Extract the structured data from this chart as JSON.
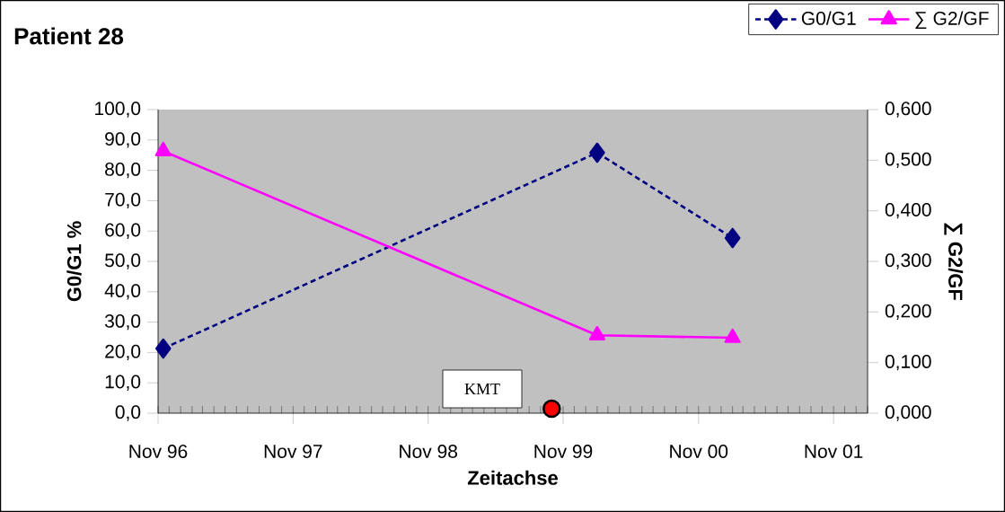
{
  "chart_data": {
    "type": "line",
    "title": "Patient 28",
    "xlabel": "Zeitachse",
    "ylabel": "G0/G1 %",
    "y2label": "∑ G2/GF",
    "xlim": [
      "1996-11",
      "2002-02"
    ],
    "xticks": [
      {
        "value": "1996-11",
        "label": "Nov 96"
      },
      {
        "value": "1997-11",
        "label": "Nov 97"
      },
      {
        "value": "1998-11",
        "label": "Nov 98"
      },
      {
        "value": "1999-11",
        "label": "Nov 99"
      },
      {
        "value": "2000-11",
        "label": "Nov 00"
      },
      {
        "value": "2001-11",
        "label": "Nov 01"
      }
    ],
    "ylim": [
      0,
      100
    ],
    "yticks": [
      {
        "value": 0,
        "label": "0,0"
      },
      {
        "value": 10,
        "label": "10,0"
      },
      {
        "value": 20,
        "label": "20,0"
      },
      {
        "value": 30,
        "label": "30,0"
      },
      {
        "value": 40,
        "label": "40,0"
      },
      {
        "value": 50,
        "label": "50,0"
      },
      {
        "value": 60,
        "label": "60,0"
      },
      {
        "value": 70,
        "label": "70,0"
      },
      {
        "value": 80,
        "label": "80,0"
      },
      {
        "value": 90,
        "label": "90,0"
      },
      {
        "value": 100,
        "label": "100,0"
      }
    ],
    "y2lim": [
      0,
      0.6
    ],
    "y2ticks": [
      {
        "value": 0,
        "label": "0,000"
      },
      {
        "value": 0.1,
        "label": "0,100"
      },
      {
        "value": 0.2,
        "label": "0,200"
      },
      {
        "value": 0.3,
        "label": "0,300"
      },
      {
        "value": 0.4,
        "label": "0,400"
      },
      {
        "value": 0.5,
        "label": "0,500"
      },
      {
        "value": 0.6,
        "label": "0,600"
      }
    ],
    "series": [
      {
        "name": "G0/G1",
        "color": "#000080",
        "marker": "diamond",
        "line_style": "dashed",
        "x": [
          "1996-11-15",
          "2000-02",
          "2001-02"
        ],
        "values": [
          21.3,
          85.8,
          57.7
        ]
      },
      {
        "name": "∑ G2/GF",
        "color": "#ff00ff",
        "marker": "triangle",
        "line_style": "solid",
        "axis": "y2",
        "x": [
          "1996-11-15",
          "2000-02",
          "2001-02"
        ],
        "values": [
          0.518,
          0.154,
          0.149
        ]
      },
      {
        "type": "scatter",
        "color": "#ff0000",
        "marker": "circle",
        "x": [
          "1999-10"
        ],
        "values": [
          1.5
        ]
      }
    ],
    "annotations": [
      "KMT"
    ],
    "legend": "top right",
    "grid": false
  }
}
